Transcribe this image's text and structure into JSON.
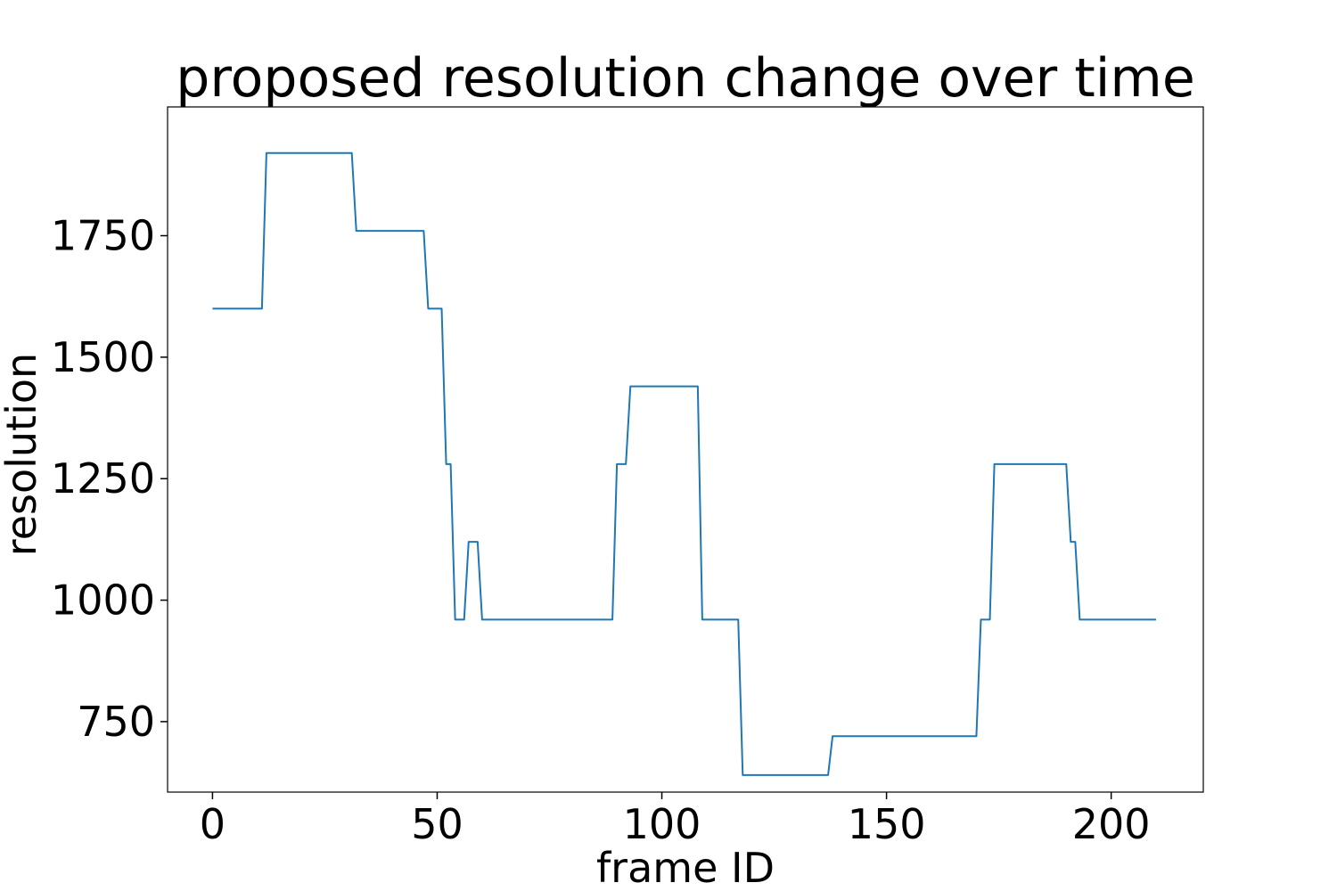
{
  "chart_data": {
    "type": "line",
    "title": "proposed resolution change over time",
    "xlabel": "frame ID",
    "ylabel": "resolution",
    "xlim": [
      -10,
      220.5
    ],
    "ylim": [
      605,
      2015
    ],
    "xticks": [
      0,
      50,
      100,
      150,
      200
    ],
    "yticks": [
      750,
      1000,
      1250,
      1500,
      1750
    ],
    "grid": false,
    "legend": "none",
    "series": [
      {
        "color": "#1f77b4",
        "points": [
          [
            0,
            1600
          ],
          [
            11,
            1600
          ],
          [
            12,
            1920
          ],
          [
            31,
            1920
          ],
          [
            32,
            1760
          ],
          [
            47,
            1760
          ],
          [
            48,
            1600
          ],
          [
            51,
            1600
          ],
          [
            52,
            1280
          ],
          [
            53,
            1280
          ],
          [
            54,
            960
          ],
          [
            56,
            960
          ],
          [
            57,
            1120
          ],
          [
            59,
            1120
          ],
          [
            60,
            960
          ],
          [
            89,
            960
          ],
          [
            90,
            1280
          ],
          [
            92,
            1280
          ],
          [
            93,
            1440
          ],
          [
            108,
            1440
          ],
          [
            109,
            960
          ],
          [
            117,
            960
          ],
          [
            118,
            640
          ],
          [
            137,
            640
          ],
          [
            138,
            720
          ],
          [
            170,
            720
          ],
          [
            171,
            960
          ],
          [
            173,
            960
          ],
          [
            174,
            1280
          ],
          [
            190,
            1280
          ],
          [
            191,
            1120
          ],
          [
            192,
            1120
          ],
          [
            193,
            960
          ],
          [
            210,
            960
          ]
        ]
      }
    ]
  }
}
